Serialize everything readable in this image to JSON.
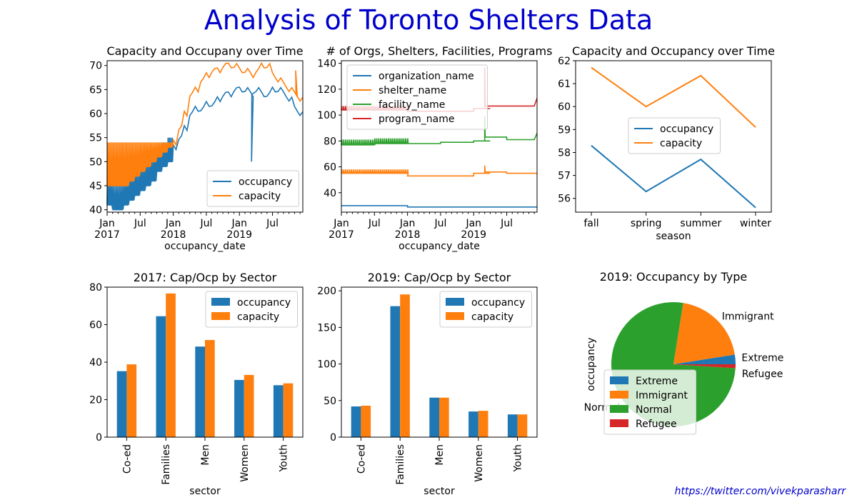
{
  "suptitle": "Analysis of Toronto Shelters Data",
  "credit": "https://twitter.com/vivekparasharr",
  "colors": {
    "blue": "#1f77b4",
    "orange": "#ff7f0e",
    "green": "#2ca02c",
    "red": "#d62728",
    "title": "#0000cc"
  },
  "chart_data": [
    {
      "type": "line",
      "title": "Capacity and Occupany over Time",
      "xlabel": "occupancy_date",
      "ylabel": "",
      "x_ticks": [
        "Jan\n2017",
        "Jul",
        "Jan\n2018",
        "Jul",
        "Jan\n2019",
        "Jul"
      ],
      "x_range": [
        "2017-01",
        "2019-12"
      ],
      "ylim": [
        39.5,
        71
      ],
      "y_ticks": [
        40,
        45,
        50,
        55,
        60,
        65,
        70
      ],
      "legend": "lower right",
      "grid": false,
      "series": [
        {
          "name": "occupancy",
          "color": "#1f77b4",
          "x": [
            "2017-01",
            "2017-02",
            "2017-03",
            "2017-04",
            "2017-05",
            "2017-06",
            "2017-07",
            "2017-08",
            "2017-09",
            "2017-10",
            "2017-11",
            "2017-12",
            "2018-01",
            "2018-02",
            "2018-03",
            "2018-04",
            "2018-05",
            "2018-06",
            "2018-07",
            "2018-08",
            "2018-09",
            "2018-10",
            "2018-11",
            "2018-12",
            "2019-01",
            "2019-02",
            "2019-03",
            "2019-04",
            "2019-05",
            "2019-06",
            "2019-07",
            "2019-08",
            "2019-09",
            "2019-10",
            "2019-11",
            "2019-12"
          ],
          "values": [
            43,
            42,
            42,
            43,
            44,
            45,
            46,
            47,
            48,
            50,
            51,
            52,
            53,
            55,
            57,
            60,
            61,
            61,
            62,
            62,
            63,
            64,
            64,
            65,
            65,
            65,
            64,
            65,
            64,
            64,
            65,
            65,
            64,
            63,
            61,
            60
          ],
          "spike": {
            "x": "2019-03",
            "value": 50
          }
        },
        {
          "name": "capacity",
          "color": "#ff7f0e",
          "x": [
            "2017-01",
            "2017-02",
            "2017-03",
            "2017-04",
            "2017-05",
            "2017-06",
            "2017-07",
            "2017-08",
            "2017-09",
            "2017-10",
            "2017-11",
            "2017-12",
            "2018-01",
            "2018-02",
            "2018-03",
            "2018-04",
            "2018-05",
            "2018-06",
            "2018-07",
            "2018-08",
            "2018-09",
            "2018-10",
            "2018-11",
            "2018-12",
            "2019-01",
            "2019-02",
            "2019-03",
            "2019-04",
            "2019-05",
            "2019-06",
            "2019-07",
            "2019-08",
            "2019-09",
            "2019-10",
            "2019-11",
            "2019-12"
          ],
          "values": [
            46,
            46,
            46,
            46,
            47,
            48,
            49,
            50,
            51,
            52,
            53,
            54,
            54,
            57,
            60,
            64,
            65,
            67,
            68,
            69,
            69,
            70,
            70,
            70,
            69,
            69,
            68,
            69,
            70,
            70,
            68,
            67,
            66,
            65,
            64,
            63
          ],
          "spike": {
            "x": "2019-11",
            "value": 69
          }
        }
      ]
    },
    {
      "type": "line",
      "title": "# of Orgs, Shelters, Facilities, Programs",
      "xlabel": "occupancy_date",
      "ylabel": "",
      "x_ticks": [
        "Jan\n2017",
        "Jul",
        "Jan\n2018",
        "Jul",
        "Jan\n2019",
        "Jul"
      ],
      "x_range": [
        "2017-01",
        "2019-12"
      ],
      "ylim": [
        25,
        142
      ],
      "y_ticks": [
        40,
        60,
        80,
        100,
        120,
        140
      ],
      "legend": "upper left",
      "grid": false,
      "series": [
        {
          "name": "organization_name",
          "color": "#1f77b4",
          "x": [
            "2017-01",
            "2017-07",
            "2018-01",
            "2018-07",
            "2019-01",
            "2019-04",
            "2019-07",
            "2019-12"
          ],
          "values": [
            30,
            30,
            29,
            29,
            29,
            29,
            29,
            29
          ]
        },
        {
          "name": "shelter_name",
          "color": "#ff7f0e",
          "x": [
            "2017-01",
            "2017-07",
            "2018-01",
            "2018-07",
            "2019-01",
            "2019-04",
            "2019-07",
            "2019-12"
          ],
          "values": [
            55,
            55,
            53,
            53,
            55,
            56,
            55,
            55
          ],
          "spike": {
            "x": "2019-03",
            "value": 61
          }
        },
        {
          "name": "facility_name",
          "color": "#2ca02c",
          "x": [
            "2017-01",
            "2017-07",
            "2018-01",
            "2018-07",
            "2019-01",
            "2019-04",
            "2019-07",
            "2019-12"
          ],
          "values": [
            77,
            78,
            78,
            79,
            80,
            83,
            81,
            86
          ],
          "spike": {
            "x": "2019-03",
            "value": 99
          }
        },
        {
          "name": "program_name",
          "color": "#d62728",
          "x": [
            "2017-01",
            "2017-07",
            "2018-01",
            "2018-07",
            "2019-01",
            "2019-04",
            "2019-07",
            "2019-12"
          ],
          "values": [
            104,
            104,
            103,
            103,
            105,
            107,
            107,
            113
          ],
          "spike": {
            "x": "2019-03",
            "value": 137
          }
        }
      ]
    },
    {
      "type": "line",
      "title": "Capacity and Occupancy over Time",
      "xlabel": "season",
      "ylabel": "",
      "categories": [
        "fall",
        "spring",
        "summer",
        "winter"
      ],
      "ylim": [
        55.4,
        62.0
      ],
      "y_ticks": [
        56,
        57,
        58,
        59,
        60,
        61,
        62
      ],
      "legend": "center",
      "grid": false,
      "series": [
        {
          "name": "occupancy",
          "color": "#1f77b4",
          "values": [
            58.3,
            56.3,
            57.7,
            55.6
          ]
        },
        {
          "name": "capacity",
          "color": "#ff7f0e",
          "values": [
            61.7,
            60.0,
            61.35,
            59.1
          ]
        }
      ]
    },
    {
      "type": "bar",
      "title": "2017: Cap/Ocp by Sector",
      "xlabel": "sector",
      "ylabel": "",
      "categories": [
        "Co-ed",
        "Families",
        "Men",
        "Women",
        "Youth"
      ],
      "ylim": [
        0,
        80
      ],
      "y_ticks": [
        0,
        20,
        40,
        60,
        80
      ],
      "legend": "upper right",
      "grid": false,
      "series": [
        {
          "name": "occupancy",
          "color": "#1f77b4",
          "values": [
            35.2,
            64.5,
            48.3,
            30.5,
            27.7
          ]
        },
        {
          "name": "capacity",
          "color": "#ff7f0e",
          "values": [
            38.8,
            76.6,
            51.8,
            33.2,
            28.7
          ]
        }
      ]
    },
    {
      "type": "bar",
      "title": "2019: Cap/Ocp by Sector",
      "xlabel": "sector",
      "ylabel": "",
      "categories": [
        "Co-ed",
        "Families",
        "Men",
        "Women",
        "Youth"
      ],
      "ylim": [
        0,
        205
      ],
      "y_ticks": [
        0,
        50,
        100,
        150,
        200
      ],
      "legend": "upper right",
      "grid": false,
      "series": [
        {
          "name": "occupancy",
          "color": "#1f77b4",
          "values": [
            42,
            179,
            54,
            35,
            31
          ]
        },
        {
          "name": "capacity",
          "color": "#ff7f0e",
          "values": [
            43,
            195,
            54,
            36,
            31
          ]
        }
      ]
    },
    {
      "type": "pie",
      "title": "2019: Occupancy by Type",
      "ylabel": "occupancy",
      "legend": "lower left",
      "slices": [
        {
          "name": "Extreme",
          "value": 2.5,
          "color": "#1f77b4"
        },
        {
          "name": "Immigrant",
          "value": 20.0,
          "color": "#ff7f0e"
        },
        {
          "name": "Normal",
          "value": 76.5,
          "color": "#2ca02c"
        },
        {
          "name": "Refugee",
          "value": 1.0,
          "color": "#d62728"
        }
      ]
    }
  ]
}
